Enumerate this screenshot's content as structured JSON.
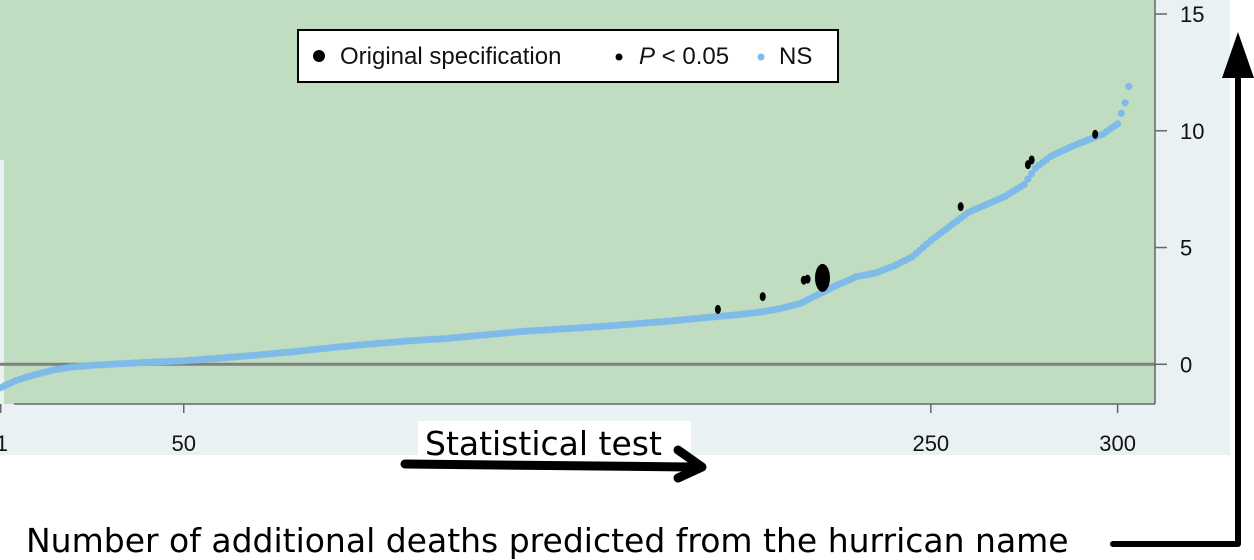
{
  "colors": {
    "plot_background": "#c0dcc1",
    "outer_background": "#e9f1f2",
    "ns_points": "#7fbbe8",
    "significant_points": "#000000",
    "zero_line": "#808080",
    "legend_border": "#000000"
  },
  "chart_data": {
    "type": "scatter",
    "title": "",
    "xlabel": "Statistical test",
    "ylabel": "Number of additional deaths predicted from the hurrican name",
    "xlim": [
      0,
      306
    ],
    "ylim": [
      -1.7,
      15.6
    ],
    "x_ticks": [
      1,
      50,
      250,
      300
    ],
    "x_tick_labels": [
      "1",
      "50",
      "250",
      "300"
    ],
    "y_ticks": [
      0,
      5,
      10,
      15
    ],
    "y_tick_labels": [
      "0",
      "5",
      "10",
      "15"
    ],
    "grid": false,
    "legend_position": "top-center",
    "legend": [
      {
        "label": "Original specification",
        "marker": "large-black-dot"
      },
      {
        "label_prefix": "P",
        "label_suffix": " < 0.05",
        "marker": "small-black-dot"
      },
      {
        "label": "NS",
        "marker": "light-blue-dot"
      }
    ],
    "reference_line": {
      "y": 0
    },
    "ns_curve": [
      [
        1,
        -1.0
      ],
      [
        5,
        -0.7
      ],
      [
        10,
        -0.45
      ],
      [
        15,
        -0.25
      ],
      [
        20,
        -0.12
      ],
      [
        25,
        -0.05
      ],
      [
        30,
        0.0
      ],
      [
        40,
        0.08
      ],
      [
        50,
        0.15
      ],
      [
        60,
        0.27
      ],
      [
        70,
        0.4
      ],
      [
        80,
        0.55
      ],
      [
        90,
        0.72
      ],
      [
        100,
        0.87
      ],
      [
        110,
        1.0
      ],
      [
        120,
        1.1
      ],
      [
        130,
        1.25
      ],
      [
        140,
        1.4
      ],
      [
        150,
        1.5
      ],
      [
        160,
        1.6
      ],
      [
        170,
        1.72
      ],
      [
        180,
        1.85
      ],
      [
        190,
        2.0
      ],
      [
        200,
        2.15
      ],
      [
        205,
        2.25
      ],
      [
        210,
        2.4
      ],
      [
        215,
        2.6
      ],
      [
        220,
        3.0
      ],
      [
        225,
        3.4
      ],
      [
        228,
        3.6
      ],
      [
        230,
        3.75
      ],
      [
        235,
        3.9
      ],
      [
        240,
        4.2
      ],
      [
        245,
        4.6
      ],
      [
        250,
        5.3
      ],
      [
        255,
        5.9
      ],
      [
        260,
        6.5
      ],
      [
        265,
        6.85
      ],
      [
        270,
        7.2
      ],
      [
        275,
        7.7
      ],
      [
        278,
        8.4
      ],
      [
        282,
        8.9
      ],
      [
        288,
        9.35
      ],
      [
        292,
        9.6
      ],
      [
        296,
        9.85
      ],
      [
        300,
        10.3
      ],
      [
        302,
        11.2
      ],
      [
        303,
        11.9
      ]
    ],
    "significant_points": [
      {
        "x": 193,
        "y": 2.35
      },
      {
        "x": 205,
        "y": 2.9
      },
      {
        "x": 216,
        "y": 3.6
      },
      {
        "x": 217,
        "y": 3.65
      },
      {
        "x": 258,
        "y": 6.75
      },
      {
        "x": 276,
        "y": 8.55
      },
      {
        "x": 277,
        "y": 8.75
      },
      {
        "x": 294,
        "y": 9.85
      }
    ],
    "original_specification": {
      "x": 221,
      "y": 3.7
    }
  }
}
